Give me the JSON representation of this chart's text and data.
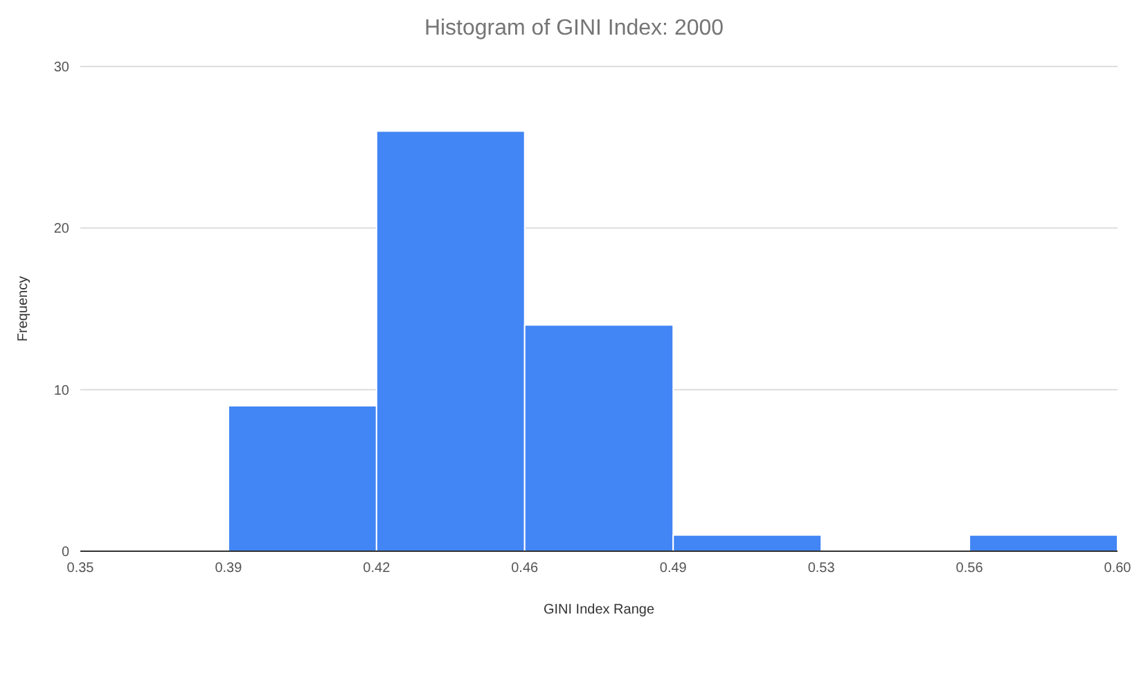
{
  "chart_data": {
    "type": "histogram",
    "title": "Histogram of GINI Index: 2000",
    "xlabel": "GINI Index Range",
    "ylabel": "Frequency",
    "bins": [
      0.3857,
      0.4214,
      0.4571,
      0.4929,
      0.5286,
      0.5643,
      0.6
    ],
    "values": [
      9,
      26,
      14,
      1,
      0,
      1
    ],
    "color": "#4285f4",
    "xlim": [
      0.35,
      0.6
    ],
    "xticks": [
      {
        "value": 0.35,
        "label": "0.35"
      },
      {
        "value": 0.3857,
        "label": "0.39"
      },
      {
        "value": 0.4214,
        "label": "0.42"
      },
      {
        "value": 0.4571,
        "label": "0.46"
      },
      {
        "value": 0.4929,
        "label": "0.49"
      },
      {
        "value": 0.5286,
        "label": "0.53"
      },
      {
        "value": 0.5643,
        "label": "0.56"
      },
      {
        "value": 0.6,
        "label": "0.60"
      }
    ],
    "ylim": [
      0,
      30
    ],
    "yticks": [
      0,
      10,
      20,
      30
    ],
    "grid": "y"
  }
}
